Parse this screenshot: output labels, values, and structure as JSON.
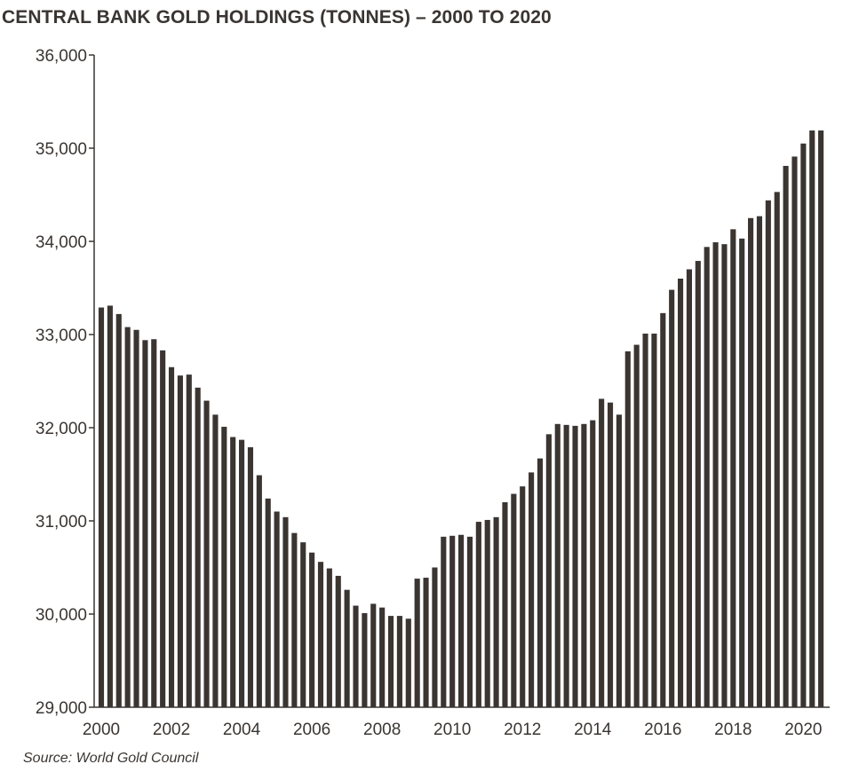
{
  "title": "CENTRAL BANK GOLD HOLDINGS (TONNES) – 2000 TO 2020",
  "source": "Source: World Gold Council",
  "chart_data": {
    "type": "bar",
    "title": "CENTRAL BANK GOLD HOLDINGS (TONNES) – 2000 TO 2020",
    "xlabel": "",
    "ylabel": "",
    "ylim": [
      29000,
      36000
    ],
    "xlim": [
      2000,
      2020.75
    ],
    "yticks": [
      29000,
      30000,
      31000,
      32000,
      33000,
      34000,
      35000,
      36000
    ],
    "ytick_labels": [
      "29,000",
      "30,000",
      "31,000",
      "32,000",
      "33,000",
      "34,000",
      "35,000",
      "36,000"
    ],
    "xticks": [
      2000,
      2002,
      2004,
      2006,
      2008,
      2010,
      2012,
      2014,
      2016,
      2018,
      2020
    ],
    "xtick_labels": [
      "2000",
      "2002",
      "2004",
      "2006",
      "2008",
      "2010",
      "2012",
      "2014",
      "2016",
      "2018",
      "2020"
    ],
    "grid": false,
    "bar_color": "#3b3532",
    "categories": [
      "2000 Q1",
      "2000 Q2",
      "2000 Q3",
      "2000 Q4",
      "2001 Q1",
      "2001 Q2",
      "2001 Q3",
      "2001 Q4",
      "2002 Q1",
      "2002 Q2",
      "2002 Q3",
      "2002 Q4",
      "2003 Q1",
      "2003 Q2",
      "2003 Q3",
      "2003 Q4",
      "2004 Q1",
      "2004 Q2",
      "2004 Q3",
      "2004 Q4",
      "2005 Q1",
      "2005 Q2",
      "2005 Q3",
      "2005 Q4",
      "2006 Q1",
      "2006 Q2",
      "2006 Q3",
      "2006 Q4",
      "2007 Q1",
      "2007 Q2",
      "2007 Q3",
      "2007 Q4",
      "2008 Q1",
      "2008 Q2",
      "2008 Q3",
      "2008 Q4",
      "2009 Q1",
      "2009 Q2",
      "2009 Q3",
      "2009 Q4",
      "2010 Q1",
      "2010 Q2",
      "2010 Q3",
      "2010 Q4",
      "2011 Q1",
      "2011 Q2",
      "2011 Q3",
      "2011 Q4",
      "2012 Q1",
      "2012 Q2",
      "2012 Q3",
      "2012 Q4",
      "2013 Q1",
      "2013 Q2",
      "2013 Q3",
      "2013 Q4",
      "2014 Q1",
      "2014 Q2",
      "2014 Q3",
      "2014 Q4",
      "2015 Q1",
      "2015 Q2",
      "2015 Q3",
      "2015 Q4",
      "2016 Q1",
      "2016 Q2",
      "2016 Q3",
      "2016 Q4",
      "2017 Q1",
      "2017 Q2",
      "2017 Q3",
      "2017 Q4",
      "2018 Q1",
      "2018 Q2",
      "2018 Q3",
      "2018 Q4",
      "2019 Q1",
      "2019 Q2",
      "2019 Q3",
      "2019 Q4",
      "2020 Q1",
      "2020 Q2",
      "2020 Q3"
    ],
    "x": [
      2000.0,
      2000.25,
      2000.5,
      2000.75,
      2001.0,
      2001.25,
      2001.5,
      2001.75,
      2002.0,
      2002.25,
      2002.5,
      2002.75,
      2003.0,
      2003.25,
      2003.5,
      2003.75,
      2004.0,
      2004.25,
      2004.5,
      2004.75,
      2005.0,
      2005.25,
      2005.5,
      2005.75,
      2006.0,
      2006.25,
      2006.5,
      2006.75,
      2007.0,
      2007.25,
      2007.5,
      2007.75,
      2008.0,
      2008.25,
      2008.5,
      2008.75,
      2009.0,
      2009.25,
      2009.5,
      2009.75,
      2010.0,
      2010.25,
      2010.5,
      2010.75,
      2011.0,
      2011.25,
      2011.5,
      2011.75,
      2012.0,
      2012.25,
      2012.5,
      2012.75,
      2013.0,
      2013.25,
      2013.5,
      2013.75,
      2014.0,
      2014.25,
      2014.5,
      2014.75,
      2015.0,
      2015.25,
      2015.5,
      2015.75,
      2016.0,
      2016.25,
      2016.5,
      2016.75,
      2017.0,
      2017.25,
      2017.5,
      2017.75,
      2018.0,
      2018.25,
      2018.5,
      2018.75,
      2019.0,
      2019.25,
      2019.5,
      2019.75,
      2020.0,
      2020.25,
      2020.5
    ],
    "values": [
      33290,
      33310,
      33220,
      33080,
      33050,
      32940,
      32950,
      32830,
      32650,
      32560,
      32570,
      32430,
      32290,
      32140,
      32010,
      31900,
      31870,
      31790,
      31490,
      31240,
      31100,
      31040,
      30870,
      30770,
      30660,
      30560,
      30490,
      30410,
      30260,
      30090,
      30010,
      30110,
      30070,
      29980,
      29980,
      29950,
      30380,
      30390,
      30500,
      30830,
      30840,
      30850,
      30830,
      30990,
      31010,
      31040,
      31200,
      31290,
      31370,
      31520,
      31670,
      31930,
      32040,
      32030,
      32020,
      32040,
      32080,
      32310,
      32270,
      32140,
      32820,
      32890,
      33010,
      33010,
      33230,
      33480,
      33600,
      33700,
      33790,
      33940,
      33990,
      33970,
      34130,
      34030,
      34250,
      34270,
      34440,
      34530,
      34810,
      34910,
      35050,
      35190,
      35190
    ]
  }
}
